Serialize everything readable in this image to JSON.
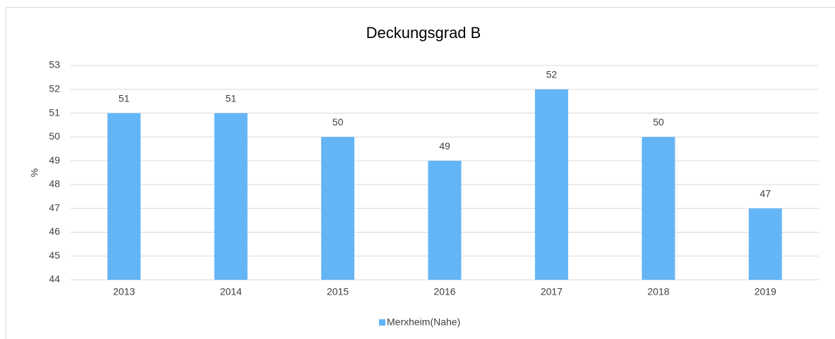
{
  "chart_data": {
    "type": "bar",
    "title": "Deckungsgrad B",
    "y_label": "%",
    "categories": [
      "2013",
      "2014",
      "2015",
      "2016",
      "2017",
      "2018",
      "2019"
    ],
    "series": [
      {
        "name": "Merxheim(Nahe)",
        "color": "#64b5f6",
        "values": [
          51,
          51,
          50,
          49,
          52,
          50,
          47
        ]
      }
    ],
    "ylim": [
      44,
      53
    ],
    "yticks": [
      44,
      45,
      46,
      47,
      48,
      49,
      50,
      51,
      52,
      53
    ],
    "grid": true,
    "legend": "bottom"
  }
}
